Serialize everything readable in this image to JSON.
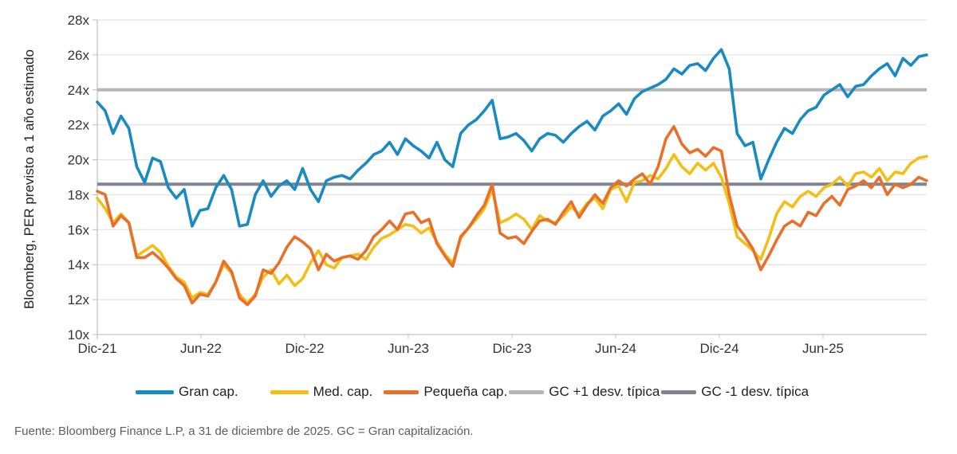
{
  "chart_data": {
    "type": "line",
    "title": "",
    "ylabel": "Bloomberg, PER previsto a 1 año estimado",
    "xlabel": "",
    "ylim": [
      10,
      28
    ],
    "yticks": [
      "10x",
      "12x",
      "14x",
      "16x",
      "18x",
      "20x",
      "22x",
      "24x",
      "26x",
      "28x"
    ],
    "ytick_values": [
      10,
      12,
      14,
      16,
      18,
      20,
      22,
      24,
      26,
      28
    ],
    "x_range_months": [
      0,
      48
    ],
    "xticks": [
      {
        "label": "Dic-21",
        "month": 0
      },
      {
        "label": "Jun-22",
        "month": 6
      },
      {
        "label": "Dic-22",
        "month": 12
      },
      {
        "label": "Jun-23",
        "month": 18
      },
      {
        "label": "Dic-23",
        "month": 24
      },
      {
        "label": "Jun-24",
        "month": 30
      },
      {
        "label": "Dic-24",
        "month": 36
      },
      {
        "label": "Jun-25",
        "month": 42
      }
    ],
    "grid": true,
    "legend_position": "bottom",
    "series": [
      {
        "name": "Gran cap.",
        "color": "#1a8ac2",
        "x_months": [
          0,
          0.5,
          1,
          1.5,
          2,
          2.5,
          3,
          3.5,
          4,
          4.5,
          5,
          5.5,
          6,
          6.5,
          7,
          7.5,
          8,
          8.5,
          9,
          9.5,
          10,
          10.5,
          11,
          11.5,
          12,
          12.5,
          13,
          13.5,
          14,
          14.5,
          15,
          15.5,
          16,
          16.5,
          17,
          17.5,
          18,
          18.5,
          19,
          19.5,
          20,
          20.5,
          21,
          21.5,
          22,
          22.5,
          23,
          23.5,
          24,
          24.5,
          25,
          25.5,
          26,
          26.5,
          27,
          27.5,
          28,
          28.5,
          29,
          29.5,
          30,
          30.5,
          31,
          31.5,
          32,
          32.5,
          33,
          33.5,
          34,
          34.5,
          35,
          35.5,
          36,
          36.5,
          37,
          37.5,
          38,
          38.5,
          39,
          39.5,
          40,
          40.5,
          41,
          41.5,
          42,
          42.5,
          43,
          43.5,
          44,
          44.5,
          45,
          45.5,
          46,
          46.5,
          47,
          47.5,
          48
        ],
        "values": [
          23.3,
          22.8,
          21.5,
          22.5,
          21.8,
          19.6,
          18.7,
          20.1,
          19.9,
          18.4,
          17.8,
          18.3,
          16.2,
          17.1,
          17.2,
          18.4,
          19.1,
          18.3,
          16.2,
          16.3,
          18.0,
          18.8,
          17.9,
          18.5,
          18.8,
          18.3,
          19.5,
          18.3,
          17.6,
          18.8,
          19.0,
          19.1,
          18.9,
          19.4,
          19.8,
          20.3,
          20.5,
          21.0,
          20.3,
          21.2,
          20.8,
          20.5,
          20.1,
          21.0,
          20.0,
          19.6,
          21.5,
          22.0,
          22.3,
          22.8,
          23.4,
          21.2,
          21.3,
          21.5,
          21.1,
          20.5,
          21.2,
          21.5,
          21.4,
          21.0,
          21.5,
          21.9,
          22.2,
          21.7,
          22.5,
          22.8,
          23.2,
          22.6,
          23.5,
          23.9,
          24.1,
          24.3,
          24.6,
          25.2,
          24.9,
          25.4,
          25.5,
          25.1,
          25.8,
          26.3,
          25.2,
          21.5,
          20.8,
          21.0,
          18.9,
          20.0,
          21.0,
          21.8,
          21.5,
          22.3,
          22.8,
          23.0,
          23.7,
          24.0,
          24.3,
          23.6,
          24.2
        ],
        "values_tail": [
          24.3,
          24.8,
          25.2,
          25.5,
          24.8,
          25.8,
          25.4,
          25.9,
          26.0
        ]
      },
      {
        "name": "Med. cap.",
        "color": "#f2bf16",
        "values": [
          17.8,
          17.2,
          16.4,
          16.9,
          16.4,
          14.5,
          14.8,
          15.1,
          14.7,
          13.9,
          13.3,
          13.0,
          12.1,
          12.4,
          12.3,
          13.0,
          14.0,
          13.5,
          12.3,
          11.8,
          12.3,
          13.3,
          13.7,
          12.9,
          13.4,
          12.8,
          13.2,
          14.1,
          14.8,
          14.0,
          13.8,
          14.4,
          14.5,
          14.6,
          14.3,
          15.0,
          15.5,
          15.7,
          16.0,
          16.3,
          16.2,
          15.8,
          16.1,
          15.3,
          14.6,
          14.1,
          15.5,
          16.1,
          16.6,
          17.2,
          18.3,
          16.4,
          16.6,
          16.9,
          16.6,
          16.0,
          16.8,
          16.5,
          16.4,
          16.8,
          17.3,
          16.9,
          17.5,
          17.8,
          17.2,
          18.3,
          18.5,
          17.6,
          18.7,
          18.8,
          19.1,
          18.9,
          19.5,
          20.3,
          19.6,
          19.2,
          19.8,
          19.4,
          19.8,
          19.0,
          17.5,
          15.6,
          15.2,
          14.8,
          14.3,
          15.5,
          16.9,
          17.6,
          17.3,
          17.9,
          18.2,
          17.9,
          18.4,
          18.6,
          19.0,
          18.5,
          19.2
        ],
        "values_tail": [
          19.3,
          19.0,
          19.5,
          18.8,
          19.3,
          19.2,
          19.8,
          20.1,
          20.2
        ]
      },
      {
        "name": "Pequeña cap.",
        "color": "#e8702a",
        "values": [
          18.2,
          18.0,
          16.2,
          16.8,
          16.4,
          14.4,
          14.4,
          14.7,
          14.3,
          13.8,
          13.2,
          12.8,
          11.8,
          12.3,
          12.2,
          13.0,
          14.2,
          13.6,
          12.1,
          11.7,
          12.2,
          13.7,
          13.5,
          14.1,
          15.0,
          15.6,
          15.3,
          14.9,
          13.7,
          14.6,
          14.2,
          14.4,
          14.5,
          14.3,
          14.8,
          15.6,
          16.0,
          16.5,
          16.0,
          16.9,
          17.0,
          16.4,
          16.6,
          15.2,
          14.5,
          13.9,
          15.6,
          16.1,
          16.8,
          17.4,
          18.6,
          15.8,
          15.5,
          15.6,
          15.2,
          15.9,
          16.5,
          16.6,
          16.3,
          17.0,
          17.6,
          16.7,
          17.4,
          18.0,
          17.5,
          18.4,
          18.8,
          18.5,
          18.9,
          19.2,
          18.6,
          19.6,
          21.2,
          21.9,
          20.9,
          20.4,
          20.6,
          20.2,
          20.7,
          20.5,
          18.0,
          16.2,
          15.6,
          14.9,
          13.7,
          14.5,
          15.4,
          16.2,
          16.5,
          16.2,
          17.0,
          16.8,
          17.5,
          17.9,
          17.4,
          18.3,
          18.5
        ],
        "values_tail": [
          18.8,
          18.4,
          19.0,
          18.0,
          18.6,
          18.4,
          18.6,
          19.0,
          18.8
        ]
      },
      {
        "name": "GC +1 desv. típica",
        "color": "#b5b5b5",
        "constant": 24.0
      },
      {
        "name": "GC -1 desv. típica",
        "color": "#7d8594",
        "constant": 18.6
      }
    ]
  },
  "legend": {
    "items": [
      {
        "label": "Gran cap.",
        "color": "#1a8ac2"
      },
      {
        "label": "Med. cap.",
        "color": "#f2bf16"
      },
      {
        "label": "Pequeña cap.",
        "color": "#e8702a"
      },
      {
        "label": "GC +1 desv. típica",
        "color": "#b5b5b5"
      },
      {
        "label": "GC -1 desv. típica",
        "color": "#7d8594"
      }
    ]
  },
  "source": "Fuente: Bloomberg Finance L.P, a 31 de diciembre de 2025. GC = Gran capitalización."
}
